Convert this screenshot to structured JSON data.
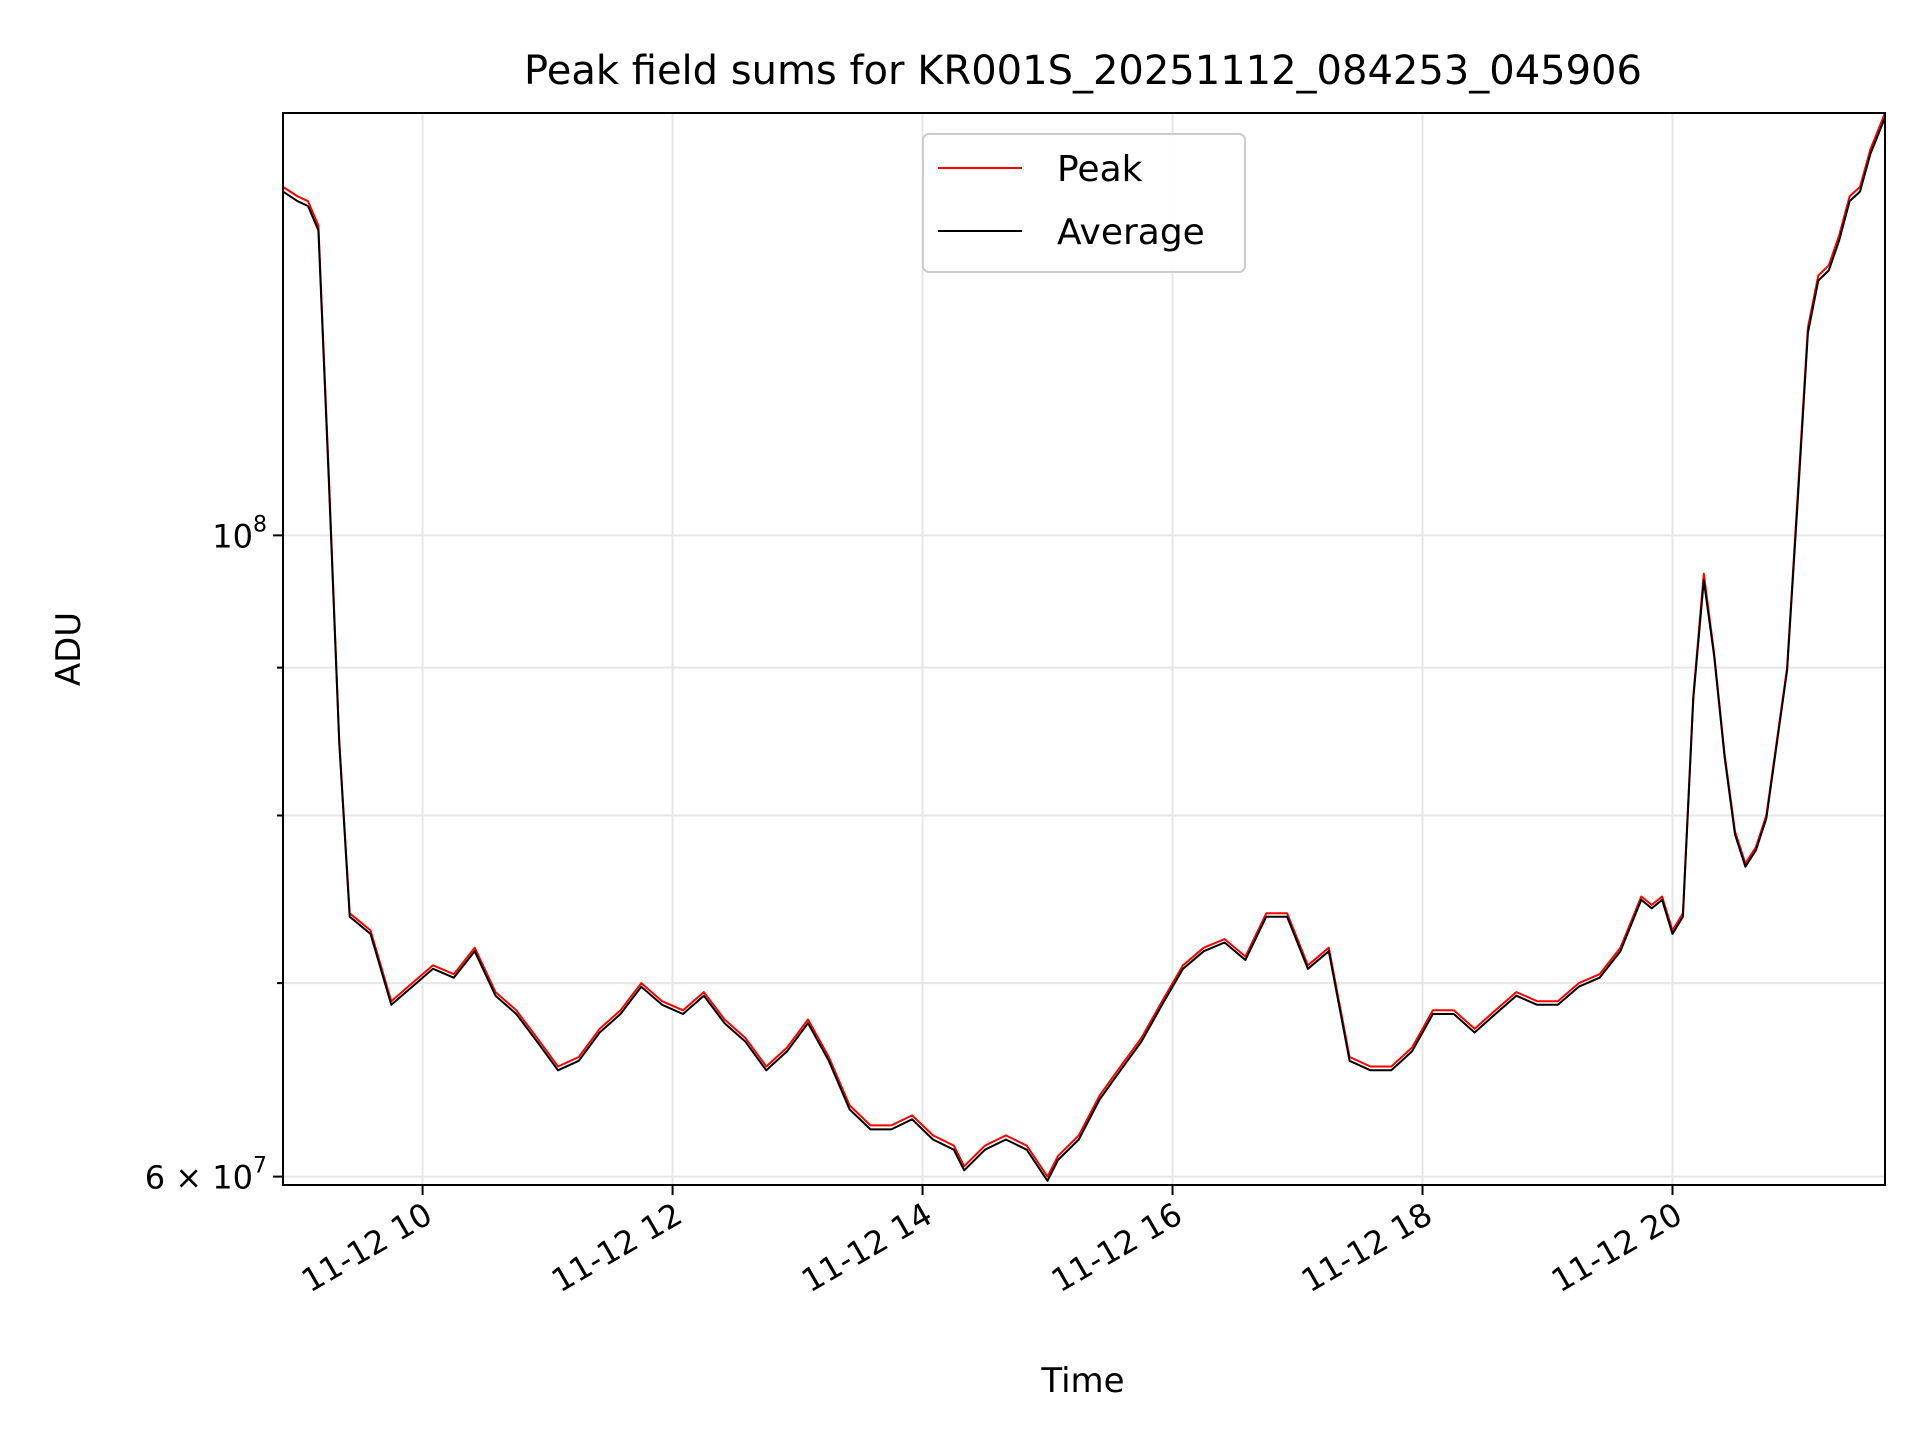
{
  "chart_data": {
    "type": "line",
    "title": "Peak field sums for KR001S_20251112_084253_045906",
    "xlabel": "Time",
    "ylabel": "ADU",
    "x_axis": {
      "kind": "datetime",
      "range": [
        "2025-11-12 08:53",
        "2025-11-12 21:42"
      ],
      "ticks": [
        {
          "value": "2025-11-12 10:00",
          "label": "11-12 10"
        },
        {
          "value": "2025-11-12 12:00",
          "label": "11-12 12"
        },
        {
          "value": "2025-11-12 14:00",
          "label": "11-12 14"
        },
        {
          "value": "2025-11-12 16:00",
          "label": "11-12 16"
        },
        {
          "value": "2025-11-12 18:00",
          "label": "11-12 18"
        },
        {
          "value": "2025-11-12 20:00",
          "label": "11-12 20"
        }
      ]
    },
    "y_axis": {
      "scale": "log",
      "range": [
        59600000,
        140000000
      ],
      "major_ticks": [
        {
          "value": 60000000,
          "label": "6 × 10",
          "sup": "7"
        },
        {
          "value": 100000000,
          "label": "10",
          "sup": "8"
        }
      ],
      "minor_ticks": [
        70000000,
        80000000,
        90000000
      ]
    },
    "grid": true,
    "legend_placement": "upper-center",
    "series": [
      {
        "name": "Peak",
        "color": "#ff0000"
      },
      {
        "name": "Average",
        "color": "#000000"
      }
    ],
    "x": [
      "2025-11-12 08:53",
      "2025-11-12 09:00",
      "2025-11-12 09:05",
      "2025-11-12 09:10",
      "2025-11-12 09:15",
      "2025-11-12 09:20",
      "2025-11-12 09:25",
      "2025-11-12 09:35",
      "2025-11-12 09:45",
      "2025-11-12 09:55",
      "2025-11-12 10:05",
      "2025-11-12 10:15",
      "2025-11-12 10:25",
      "2025-11-12 10:35",
      "2025-11-12 10:45",
      "2025-11-12 10:55",
      "2025-11-12 11:05",
      "2025-11-12 11:15",
      "2025-11-12 11:25",
      "2025-11-12 11:35",
      "2025-11-12 11:45",
      "2025-11-12 11:55",
      "2025-11-12 12:05",
      "2025-11-12 12:15",
      "2025-11-12 12:25",
      "2025-11-12 12:35",
      "2025-11-12 12:45",
      "2025-11-12 12:55",
      "2025-11-12 13:05",
      "2025-11-12 13:15",
      "2025-11-12 13:25",
      "2025-11-12 13:35",
      "2025-11-12 13:45",
      "2025-11-12 13:55",
      "2025-11-12 14:05",
      "2025-11-12 14:15",
      "2025-11-12 14:20",
      "2025-11-12 14:30",
      "2025-11-12 14:40",
      "2025-11-12 14:50",
      "2025-11-12 15:00",
      "2025-11-12 15:05",
      "2025-11-12 15:15",
      "2025-11-12 15:25",
      "2025-11-12 15:35",
      "2025-11-12 15:45",
      "2025-11-12 15:55",
      "2025-11-12 16:05",
      "2025-11-12 16:15",
      "2025-11-12 16:25",
      "2025-11-12 16:35",
      "2025-11-12 16:45",
      "2025-11-12 16:55",
      "2025-11-12 17:05",
      "2025-11-12 17:15",
      "2025-11-12 17:25",
      "2025-11-12 17:35",
      "2025-11-12 17:45",
      "2025-11-12 17:55",
      "2025-11-12 18:05",
      "2025-11-12 18:15",
      "2025-11-12 18:25",
      "2025-11-12 18:35",
      "2025-11-12 18:45",
      "2025-11-12 18:55",
      "2025-11-12 19:05",
      "2025-11-12 19:15",
      "2025-11-12 19:25",
      "2025-11-12 19:35",
      "2025-11-12 19:45",
      "2025-11-12 19:50",
      "2025-11-12 19:55",
      "2025-11-12 20:00",
      "2025-11-12 20:05",
      "2025-11-12 20:10",
      "2025-11-12 20:15",
      "2025-11-12 20:20",
      "2025-11-12 20:25",
      "2025-11-12 20:30",
      "2025-11-12 20:35",
      "2025-11-12 20:40",
      "2025-11-12 20:45",
      "2025-11-12 20:55",
      "2025-11-12 21:00",
      "2025-11-12 21:05",
      "2025-11-12 21:10",
      "2025-11-12 21:15",
      "2025-11-12 21:20",
      "2025-11-12 21:25",
      "2025-11-12 21:30",
      "2025-11-12 21:35",
      "2025-11-12 21:42"
    ],
    "values": {
      "Peak": [
        132000000,
        131000000,
        130500000,
        128000000,
        105000000,
        85000000,
        74000000,
        73000000,
        69000000,
        70000000,
        71000000,
        70500000,
        72000000,
        69500000,
        68500000,
        67000000,
        65500000,
        66000000,
        67500000,
        68500000,
        70000000,
        69000000,
        68500000,
        69500000,
        68000000,
        67000000,
        65500000,
        66500000,
        68000000,
        66000000,
        63500000,
        62500000,
        62500000,
        63000000,
        62000000,
        61500000,
        60500000,
        61500000,
        62000000,
        61500000,
        60000000,
        61000000,
        62000000,
        64000000,
        65500000,
        67000000,
        69000000,
        71000000,
        72000000,
        72500000,
        71500000,
        74000000,
        74000000,
        71000000,
        72000000,
        66000000,
        65500000,
        65500000,
        66500000,
        68500000,
        68500000,
        67500000,
        68500000,
        69500000,
        69000000,
        69000000,
        70000000,
        70500000,
        72000000,
        75000000,
        74500000,
        75000000,
        73000000,
        74000000,
        88000000,
        97000000,
        91000000,
        84000000,
        79000000,
        77000000,
        78000000,
        80000000,
        90000000,
        103000000,
        118000000,
        123000000,
        124000000,
        127000000,
        131000000,
        132000000,
        136000000,
        140000000
      ],
      "Average": [
        131500000,
        130500000,
        130000000,
        127500000,
        104500000,
        84800000,
        73800000,
        72800000,
        68800000,
        69800000,
        70800000,
        70300000,
        71800000,
        69300000,
        68300000,
        66800000,
        65300000,
        65800000,
        67300000,
        68300000,
        69800000,
        68800000,
        68300000,
        69300000,
        67800000,
        66800000,
        65300000,
        66300000,
        67800000,
        65800000,
        63300000,
        62300000,
        62300000,
        62800000,
        61800000,
        61300000,
        60300000,
        61300000,
        61800000,
        61300000,
        59800000,
        60800000,
        61800000,
        63800000,
        65300000,
        66800000,
        68800000,
        70800000,
        71800000,
        72300000,
        71300000,
        73800000,
        73800000,
        70800000,
        71800000,
        65800000,
        65300000,
        65300000,
        66300000,
        68300000,
        68300000,
        67300000,
        68300000,
        69300000,
        68800000,
        68800000,
        69800000,
        70300000,
        71800000,
        74800000,
        74300000,
        74800000,
        72800000,
        73800000,
        87800000,
        96500000,
        90800000,
        83800000,
        78800000,
        76800000,
        77800000,
        79800000,
        89800000,
        102500000,
        117500000,
        122500000,
        123500000,
        126500000,
        130500000,
        131500000,
        135500000,
        139500000
      ]
    }
  }
}
